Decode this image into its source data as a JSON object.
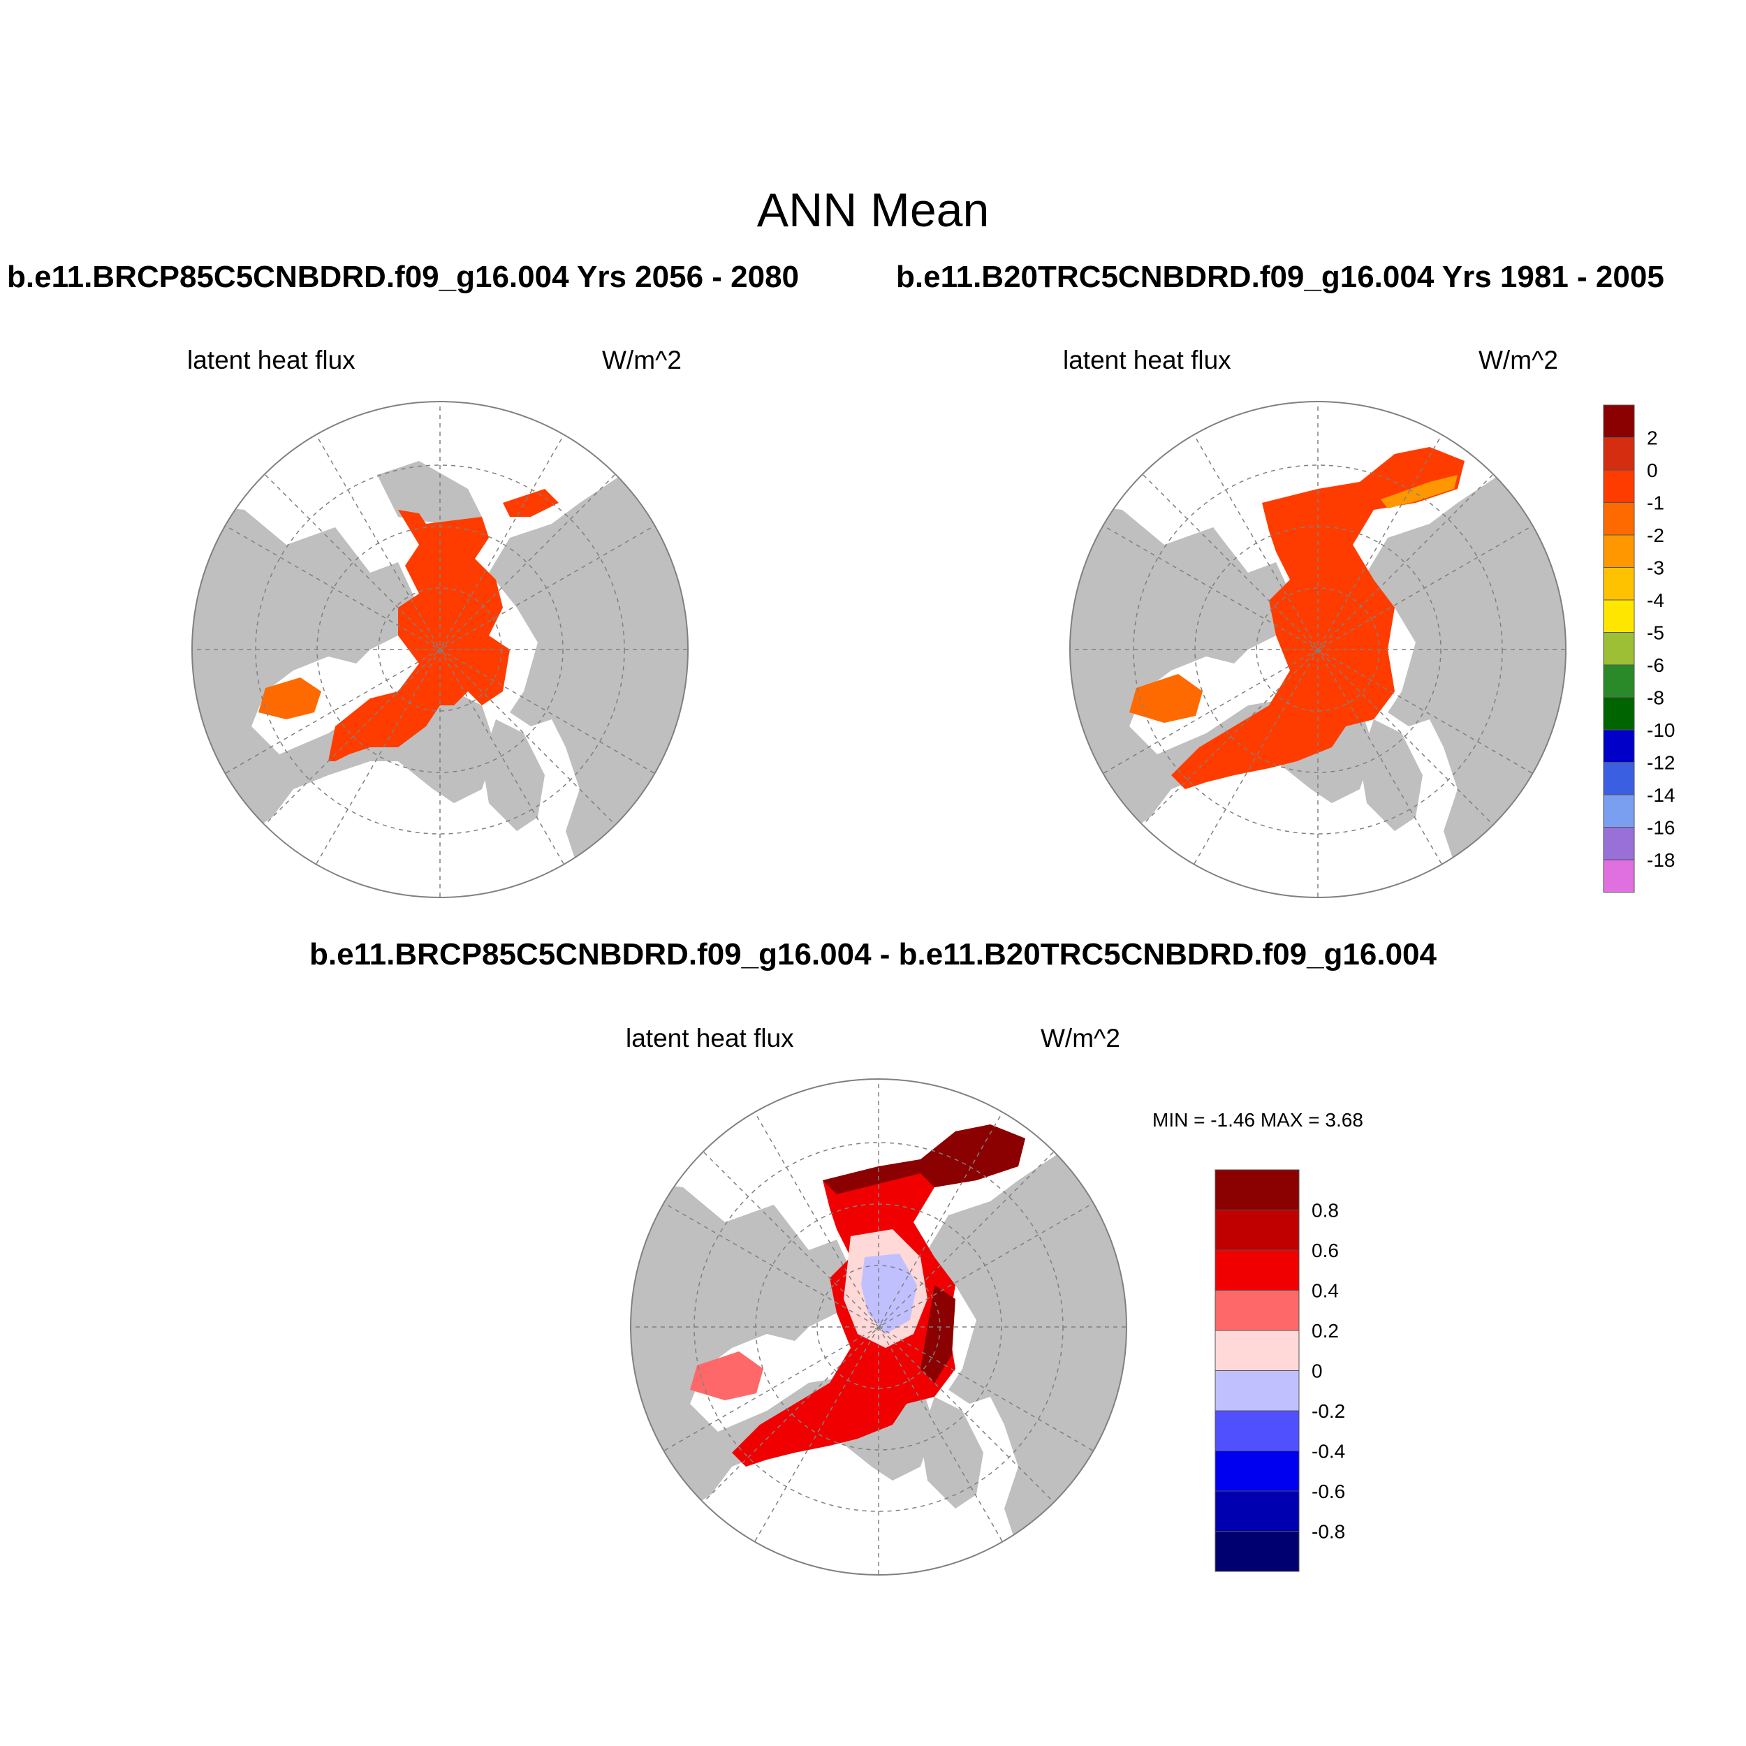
{
  "figure": {
    "title": "ANN Mean",
    "panel_top_left_title": "b.e11.BRCP85C5CNBDRD.f09_g16.004  Yrs 2056 - 2080",
    "panel_top_right_title": "b.e11.B20TRC5CNBDRD.f09_g16.004  Yrs 1981 - 2005",
    "panel_diff_title": "b.e11.BRCP85C5CNBDRD.f09_g16.004 - b.e11.B20TRC5CNBDRD.f09_g16.004"
  },
  "panels": [
    {
      "variable": "latent heat flux",
      "units": "W/m^2"
    },
    {
      "variable": "latent heat flux",
      "units": "W/m^2"
    },
    {
      "variable": "latent heat flux",
      "units": "W/m^2",
      "minmax": "MIN =  -1.46 MAX =   3.68"
    }
  ],
  "colorbar_abs": {
    "labels": [
      "2",
      "0",
      "-1",
      "-2",
      "-3",
      "-4",
      "-5",
      "-6",
      "-8",
      "-10",
      "-12",
      "-14",
      "-16",
      "-18"
    ],
    "colors": [
      "#8b0000",
      "#d42d0f",
      "#ff3c00",
      "#ff6a00",
      "#ff9800",
      "#ffc200",
      "#ffe600",
      "#9cbf35",
      "#2a8a2a",
      "#006400",
      "#0000c8",
      "#3a5fe0",
      "#7a9ef0",
      "#9870d8",
      "#e070e0"
    ]
  },
  "colorbar_diff": {
    "labels": [
      "0.8",
      "0.6",
      "0.4",
      "0.2",
      "0",
      "-0.2",
      "-0.4",
      "-0.6",
      "-0.8"
    ],
    "colors": [
      "#8b0000",
      "#c00000",
      "#f00000",
      "#ff6868",
      "#ffd8d8",
      "#c0c0ff",
      "#5050ff",
      "#0000f0",
      "#0000b0",
      "#000070"
    ]
  },
  "map_colors": {
    "land": "#bfbfbf",
    "ocean_no_ice": "#ffffff",
    "sea_ice_flux": "#ff3c00",
    "sea_ice_flux_margin": "#ff6a00"
  }
}
